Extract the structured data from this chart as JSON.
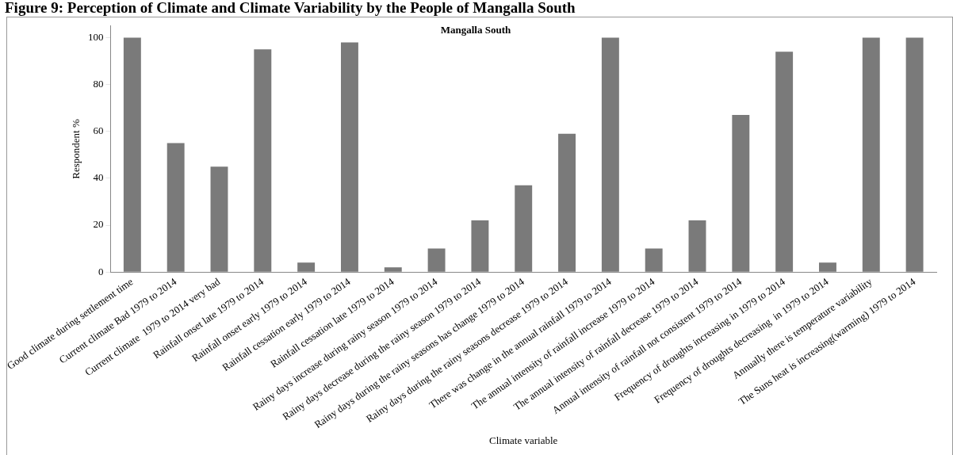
{
  "chart_data": {
    "type": "bar",
    "title": "Mangalla South",
    "xlabel": "Climate variable",
    "ylabel": "Respondent %",
    "annotations": [
      "Figure 9: Perception of Climate and Climate Variability by the People of Mangalla South"
    ],
    "categories": [
      "Good climate during settlement time",
      "Current climate Bad 1979 to 2014",
      "Current climate  1979 to 2014 very bad",
      "Rainfall onset late 1979 to 2014",
      "Rainfall onset early 1979 to 2014",
      "Rainfall cessation early 1979 to 2014",
      "Rainfall cessation late 1979 to 2014",
      "Rainy days increase during rainy season 1979 to 2014",
      "Rainy days decrease during the rainy season 1979 to 2014",
      "Rainy days during the rainy seasons has change 1979 to 2014",
      "Rainy days during the rainy seasons decrease 1979 to 2014",
      "There was change in the annual rainfall 1979 to 2014",
      "The annual intensity of rainfall increase 1979 to 2014",
      "The annual intensity of rainfall decrease 1979 to 2014",
      "Annual intensity of rainfall not consistent 1979 to 2014",
      "Frequency of droughts increasing in 1979 to 2014",
      "Frequency of droughts decreasing  in 1979 to 2014",
      "Annually there is temperature variability",
      "The Suns heat is increasing(warming) 1979 to 2014"
    ],
    "values": [
      100,
      55,
      45,
      95,
      4,
      98,
      2,
      10,
      22,
      37,
      59,
      100,
      10,
      22,
      67,
      94,
      4,
      100,
      100
    ],
    "color": "#7a7a7a",
    "ylim": [
      0,
      105
    ],
    "yticks": [
      0,
      20,
      40,
      60,
      80,
      100
    ],
    "grid": false,
    "legend": false
  }
}
